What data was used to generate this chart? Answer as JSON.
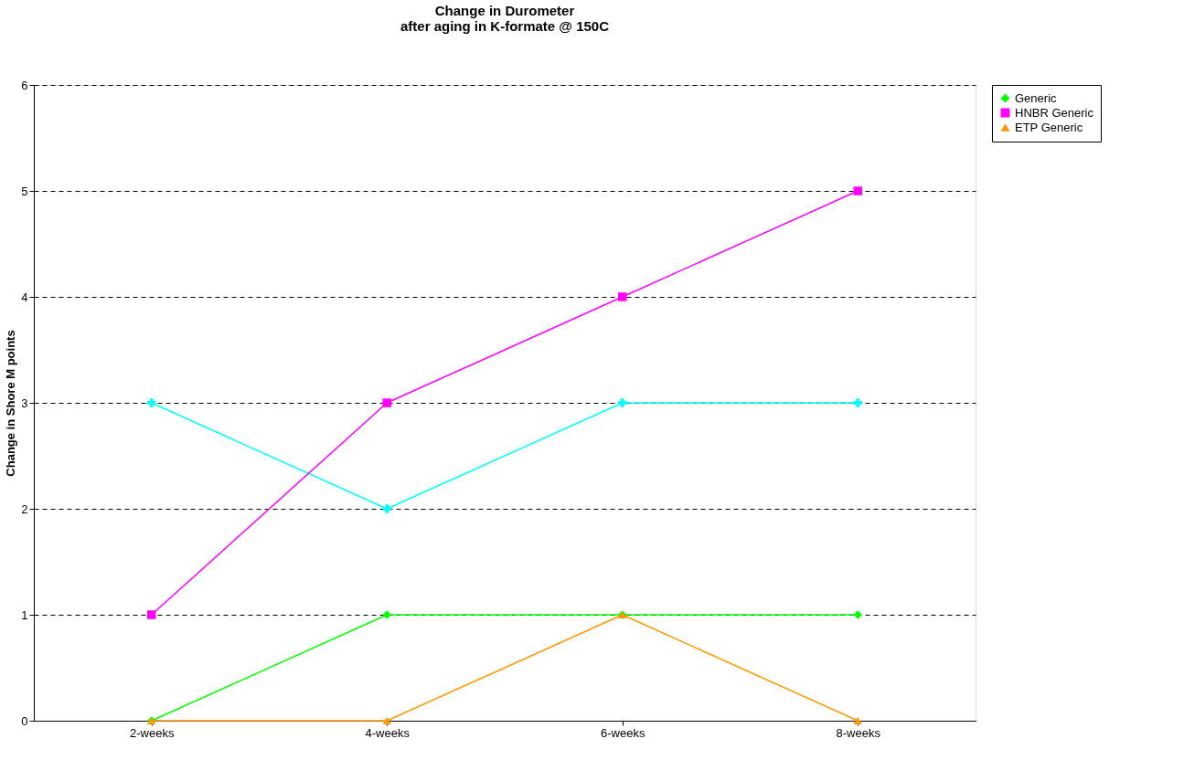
{
  "chart_data": {
    "type": "line",
    "title": "Change in Durometer\nafter aging in K-formate @ 150C",
    "ylabel": "Change in Shore M points",
    "categories": [
      "2-weeks",
      "4-weeks",
      "6-weeks",
      "8-weeks"
    ],
    "series": [
      {
        "name": "Generic",
        "color": "#00ff00",
        "marker": "diamond",
        "values": [
          0,
          1,
          1,
          1
        ]
      },
      {
        "color": "#00ffff",
        "marker": "cross",
        "values": [
          3,
          2,
          3,
          3
        ]
      },
      {
        "name": "HNBR Generic",
        "color": "#ff00ff",
        "marker": "square",
        "values": [
          1,
          3,
          4,
          5
        ]
      },
      {
        "name": "ETP Generic",
        "color": "#ff9900",
        "marker": "triangle",
        "values": [
          0,
          0,
          1,
          0
        ]
      }
    ],
    "ylim": [
      0,
      6
    ],
    "yticks": [
      0,
      1,
      2,
      3,
      4,
      5,
      6
    ],
    "grid": "y",
    "legend": "right"
  }
}
